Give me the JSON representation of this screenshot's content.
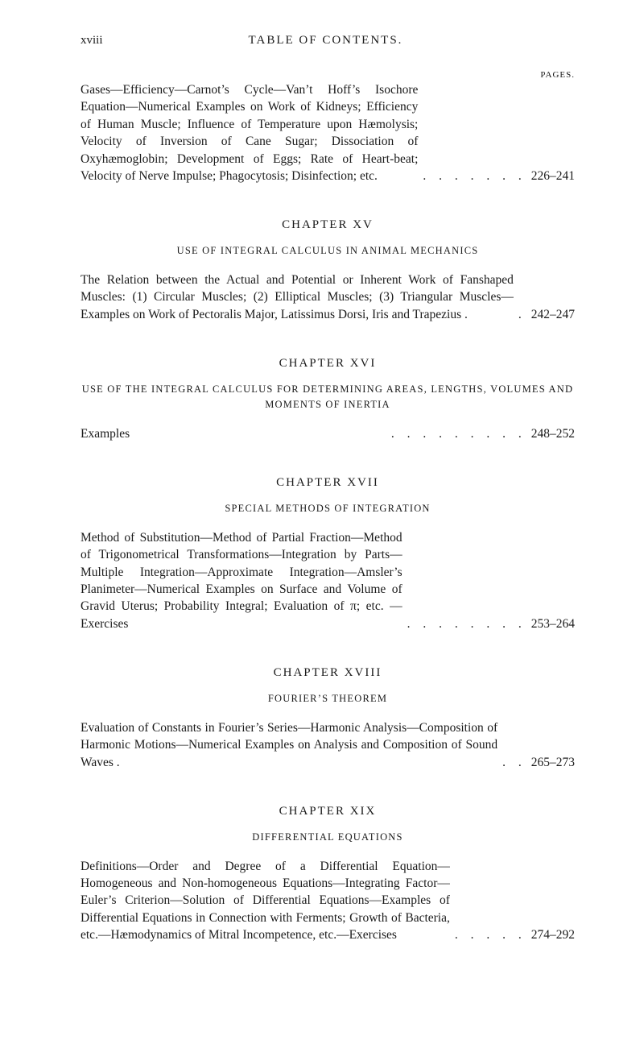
{
  "colors": {
    "background": "#ffffff",
    "text": "#1a1a1a"
  },
  "typography": {
    "body_fontsize_pt": 15.5,
    "small_caps_fontsize_pt": 12.5,
    "chapter_head_fontsize_pt": 15,
    "line_height": 1.38
  },
  "running_head": {
    "folio": "xviii",
    "title": "TABLE OF CONTENTS."
  },
  "pages_label": "PAGES.",
  "entries": {
    "prev_cont": {
      "desc": "Gases—Efficiency—Carnot’s Cycle—Van’t Hoff’s Isochore Equation—Numerical Examples on Work of Kidneys; Efficiency of Human Muscle; Influence of Temperature upon Hæmolysis; Velocity of Inversion of Cane Sugar; Dissociation of Oxyhæmoglobin; Development of Eggs; Rate of Heart-beat; Velocity of Nerve Impulse; Phagocytosis; Disinfection; etc.",
      "leaders": ". . . . . . .",
      "pages": "226–241"
    },
    "ch15": {
      "head": "CHAPTER XV",
      "sub": "USE OF INTEGRAL CALCULUS IN ANIMAL MECHANICS",
      "desc": "The Relation between the Actual and Potential or Inherent Work of Fanshaped Muscles: (1) Circular Muscles; (2) Elliptical Muscles; (3) Triangular Muscles—Examples on Work of Pectoralis Major, Latissimus Dorsi, Iris and Trapezius .",
      "leaders": ".",
      "pages": "242–247"
    },
    "ch16": {
      "head": "CHAPTER XVI",
      "sub": "USE OF THE INTEGRAL CALCULUS FOR DETERMINING AREAS, LENGTHS, VOLUMES AND MOMENTS OF INERTIA",
      "desc": "Examples",
      "leaders": ". . . . . . . . .",
      "pages": "248–252"
    },
    "ch17": {
      "head": "CHAPTER XVII",
      "sub": "SPECIAL METHODS OF INTEGRATION",
      "desc": "Method of Substitution—Method of Partial Fraction—Method of Trigonometrical Transformations—Integration by Parts—Multiple Integration—Approximate Integration—Amsler’s Planimeter—Numerical Examples on Surface and Volume of Gravid Uterus; Probability Integral; Evaluation of π; etc. —Exercises",
      "leaders": ". . . . . . . .",
      "pages": "253–264"
    },
    "ch18": {
      "head": "CHAPTER XVIII",
      "sub": "FOURIER’S THEOREM",
      "desc": "Evaluation of Constants in Fourier’s Series—Harmonic Analysis—Composition of Harmonic Motions—Numerical Examples on Analysis and Composition of Sound Waves .",
      "leaders": ". .",
      "pages": "265–273"
    },
    "ch19": {
      "head": "CHAPTER XIX",
      "sub": "DIFFERENTIAL EQUATIONS",
      "desc": "Definitions—Order and Degree of a Differential Equation—Homogeneous and Non-homogeneous Equations—Integrating Factor—Euler’s Criterion—Solution of Differential Equations—Examples of Differential Equations in Connection with Ferments; Growth of Bacteria, etc.—Hæmodynamics of Mitral Incompetence, etc.—Exercises",
      "leaders": ". . . . .",
      "pages": "274–292"
    }
  }
}
